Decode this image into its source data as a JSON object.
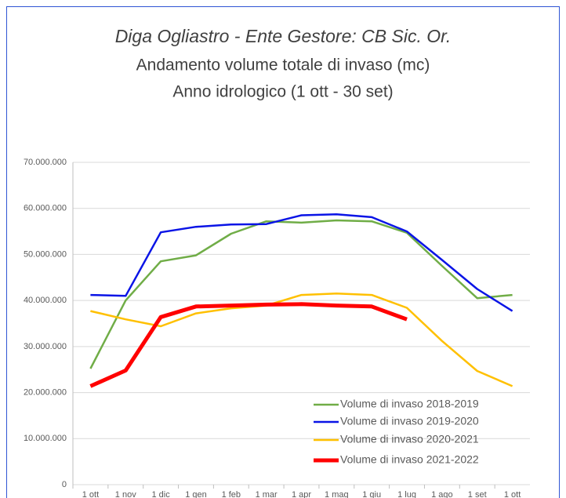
{
  "chart_data": {
    "type": "line",
    "title": "Diga Ogliastro - Ente Gestore: CB Sic. Or.",
    "subtitle": [
      "Andamento volume totale di invaso (mc)",
      "Anno idrologico (1 ott - 30 set)"
    ],
    "categories": [
      "1 ott",
      "1 nov",
      "1 dic",
      "1 gen",
      "1 feb",
      "1 mar",
      "1 apr",
      "1 mag",
      "1 giu",
      "1 lug",
      "1 ago",
      "1 set",
      "1 ott"
    ],
    "series": [
      {
        "name": "Volume di invaso 2018-2019",
        "color": "#70ad47",
        "width": 2.5,
        "values": [
          25200000,
          40000000,
          48500000,
          49800000,
          54500000,
          57200000,
          56900000,
          57400000,
          57200000,
          54700000,
          47500000,
          40500000,
          41200000
        ]
      },
      {
        "name": "Volume di invaso 2019-2020",
        "color": "#0a14e6",
        "width": 2.5,
        "values": [
          41200000,
          41000000,
          54800000,
          56000000,
          56500000,
          56600000,
          58500000,
          58700000,
          58100000,
          55000000,
          48800000,
          42500000,
          37700000
        ]
      },
      {
        "name": "Volume di invaso 2020-2021",
        "color": "#ffc000",
        "width": 2.5,
        "values": [
          37700000,
          35900000,
          34400000,
          37200000,
          38300000,
          38900000,
          41200000,
          41500000,
          41200000,
          38400000,
          31200000,
          24700000,
          21400000
        ]
      },
      {
        "name": "Volume di invaso 2021-2022",
        "color": "#ff0000",
        "width": 5,
        "values": [
          21400000,
          24800000,
          36400000,
          38700000,
          38900000,
          39100000,
          39200000,
          38900000,
          38700000,
          35900000,
          null,
          null,
          null
        ]
      }
    ],
    "ylim": [
      0,
      70000000
    ],
    "yticks": [
      0,
      {
        "value": 10000000,
        "label": "10.000.000"
      },
      {
        "value": 20000000,
        "label": "20.000.000"
      },
      {
        "value": 30000000,
        "label": "30.000.000"
      },
      {
        "value": 40000000,
        "label": "40.000.000"
      },
      {
        "value": 50000000,
        "label": "50.000.000"
      },
      {
        "value": 60000000,
        "label": "60.000.000"
      },
      {
        "value": 70000000,
        "label": "70.000.000"
      }
    ],
    "grid": true,
    "legend": "lower right"
  }
}
